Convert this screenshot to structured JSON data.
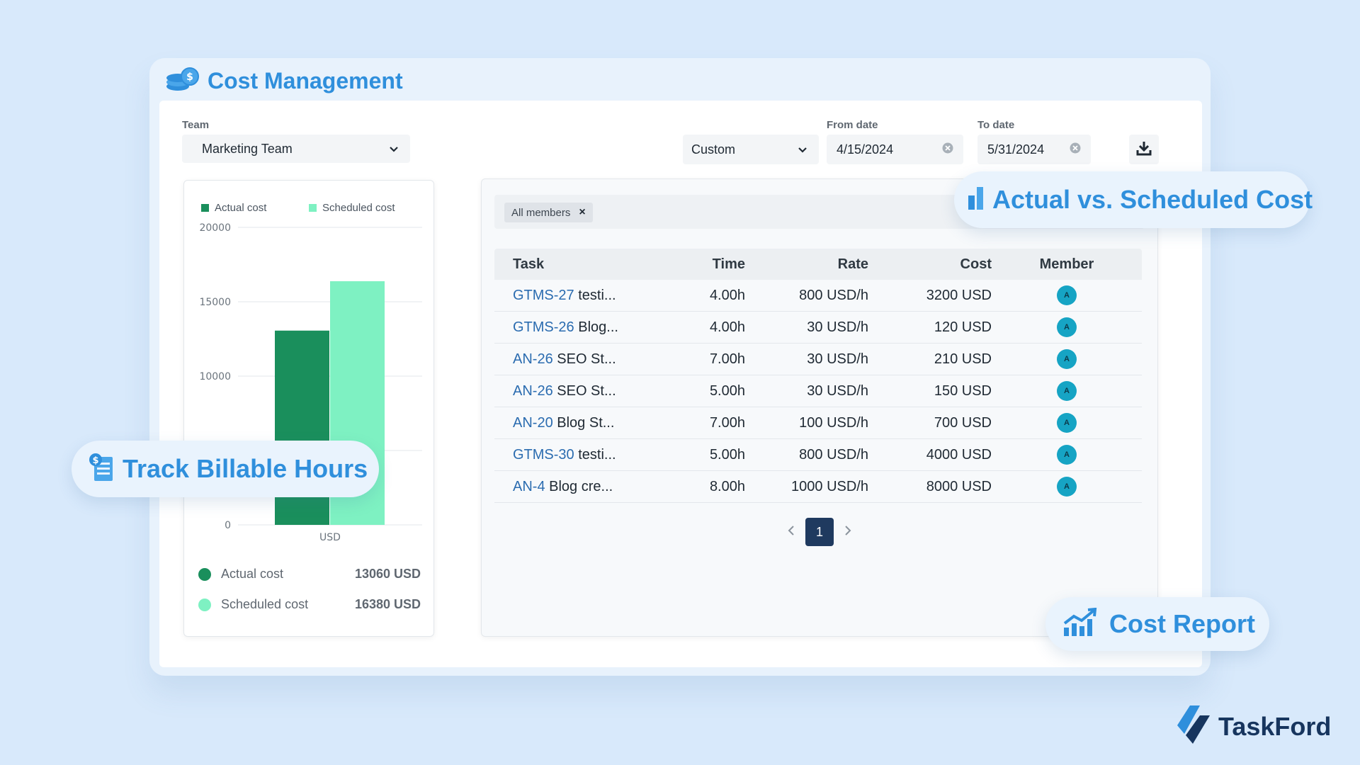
{
  "app": {
    "title": "Cost Management",
    "title_icon": "coins-stack-icon"
  },
  "filters": {
    "team_label": "Team",
    "team_value": "Marketing Team",
    "range_value": "Custom",
    "from_label": "From date",
    "from_value": "4/15/2024",
    "to_label": "To date",
    "to_value": "5/31/2024",
    "download_icon": "download-icon"
  },
  "chart_data": {
    "type": "bar",
    "categories": [
      "USD"
    ],
    "series": [
      {
        "name": "Actual cost",
        "values": [
          13060
        ],
        "color": "#1a8f5c"
      },
      {
        "name": "Scheduled cost",
        "values": [
          16380
        ],
        "color": "#7ef1c2"
      }
    ],
    "ylim": [
      0,
      20000
    ],
    "yticks": [
      "0",
      "5000",
      "10000",
      "15000",
      "20000"
    ],
    "legend": "top"
  },
  "chart_summary": [
    {
      "label": "Actual cost",
      "value": "13060 USD",
      "color": "#1a8f5c"
    },
    {
      "label": "Scheduled cost",
      "value": "16380 USD",
      "color": "#7ef1c2"
    }
  ],
  "table": {
    "filter_chip": "All members",
    "chip_close": "×",
    "headers": [
      "Task",
      "Time",
      "Rate",
      "Cost",
      "Member"
    ],
    "rows": [
      {
        "key": "GTMS-27",
        "name": "testi...",
        "time": "4.00h",
        "rate": "800 USD/h",
        "cost": "3200 USD",
        "member": "A"
      },
      {
        "key": "GTMS-26",
        "name": "Blog...",
        "time": "4.00h",
        "rate": "30 USD/h",
        "cost": "120 USD",
        "member": "A"
      },
      {
        "key": "AN-26",
        "name": "SEO St...",
        "time": "7.00h",
        "rate": "30 USD/h",
        "cost": "210 USD",
        "member": "A"
      },
      {
        "key": "AN-26",
        "name": "SEO St...",
        "time": "5.00h",
        "rate": "30 USD/h",
        "cost": "150 USD",
        "member": "A"
      },
      {
        "key": "AN-20",
        "name": "Blog St...",
        "time": "7.00h",
        "rate": "100 USD/h",
        "cost": "700 USD",
        "member": "A"
      },
      {
        "key": "GTMS-30",
        "name": "testi...",
        "time": "5.00h",
        "rate": "800 USD/h",
        "cost": "4000 USD",
        "member": "A"
      },
      {
        "key": "AN-4",
        "name": "Blog cre...",
        "time": "8.00h",
        "rate": "1000 USD/h",
        "cost": "8000 USD",
        "member": "A"
      }
    ],
    "page": "1"
  },
  "badges": {
    "actual_vs_scheduled": "Actual vs. Scheduled Cost",
    "track_hours": "Track Billable Hours",
    "cost_report": "Cost Report"
  },
  "brand": {
    "name": "TaskFord"
  },
  "colors": {
    "accent": "#2f8fdc",
    "actual": "#1a8f5c",
    "scheduled": "#7ef1c2",
    "navy": "#1f3a5f"
  }
}
